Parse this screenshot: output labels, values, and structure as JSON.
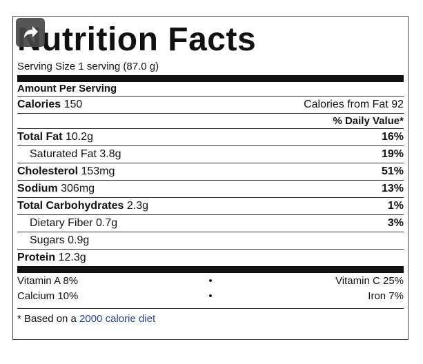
{
  "title": "Nutrition Facts",
  "serving_size": "Serving Size 1 serving (87.0 g)",
  "amount_per_serving": "Amount Per Serving",
  "calories": {
    "label": "Calories",
    "value": "150",
    "from_fat": "Calories from Fat 92"
  },
  "daily_value_header": "% Daily Value*",
  "nutrients": [
    {
      "label": "Total Fat",
      "amount": "10.2g",
      "pct": "16%"
    },
    {
      "label": "Saturated Fat",
      "amount": "3.8g",
      "pct": "19%"
    },
    {
      "label": "Cholesterol",
      "amount": "153mg",
      "pct": "51%"
    },
    {
      "label": "Sodium",
      "amount": "306mg",
      "pct": "13%"
    },
    {
      "label": "Total Carbohydrates",
      "amount": "2.3g",
      "pct": "1%"
    },
    {
      "label": "Dietary Fiber",
      "amount": "0.7g",
      "pct": "3%"
    },
    {
      "label": "Sugars",
      "amount": "0.9g",
      "pct": ""
    },
    {
      "label": "Protein",
      "amount": "12.3g",
      "pct": ""
    }
  ],
  "vitamins": [
    {
      "left": "Vitamin A 8%",
      "dot": "•",
      "right": "Vitamin C 25%"
    },
    {
      "left": "Calcium 10%",
      "dot": "•",
      "right": "Iron 7%"
    }
  ],
  "footnote": {
    "prefix": "* Based on a ",
    "link": "2000 calorie diet"
  },
  "share_icon": "share-arrow-icon"
}
